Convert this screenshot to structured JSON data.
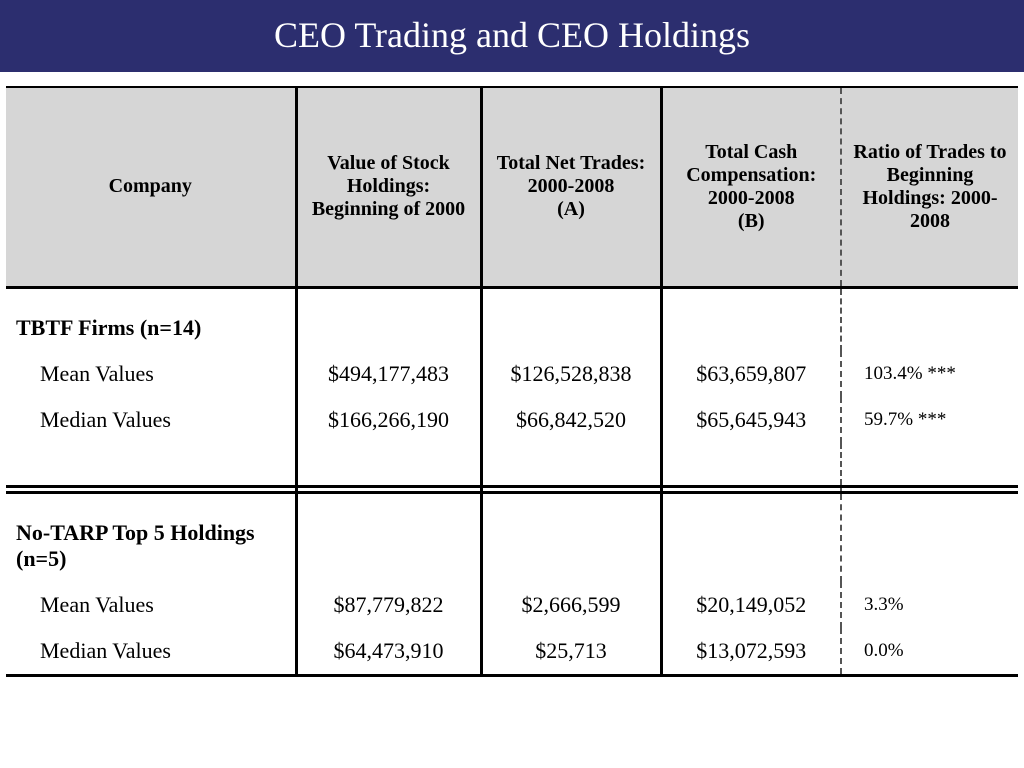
{
  "title": "CEO Trading and CEO Holdings",
  "columns": {
    "company": "Company",
    "holdings": "Value of Stock Holdings: Beginning of 2000",
    "trades_a": "Total Net Trades: 2000-2008",
    "trades_a_sub": "(A)",
    "cash_b": "Total Cash Compensation: 2000-2008",
    "cash_b_sub": "(B)",
    "ratio": "Ratio of Trades to Beginning Holdings: 2000-2008"
  },
  "groups": [
    {
      "label": "TBTF Firms (n=14)",
      "rows": [
        {
          "label": "Mean Values",
          "holdings": "$494,177,483",
          "trades": "$126,528,838",
          "cash": "$63,659,807",
          "ratio": "103.4% ***"
        },
        {
          "label": "Median Values",
          "holdings": "$166,266,190",
          "trades": "$66,842,520",
          "cash": "$65,645,943",
          "ratio": "59.7% ***"
        }
      ]
    },
    {
      "label": "No-TARP Top 5 Holdings (n=5)",
      "rows": [
        {
          "label": "Mean Values",
          "holdings": "$87,779,822",
          "trades": "$2,666,599",
          "cash": "$20,149,052",
          "ratio": "3.3%"
        },
        {
          "label": "Median Values",
          "holdings": "$64,473,910",
          "trades": "$25,713",
          "cash": "$13,072,593",
          "ratio": "0.0%"
        }
      ]
    }
  ],
  "colors": {
    "title_bg": "#2c2e6f",
    "title_text": "#ffffff",
    "header_bg": "#d6d6d6",
    "body_bg": "#ffffff",
    "border": "#000000",
    "dash": "#555555"
  },
  "typography": {
    "title_fontsize": 36,
    "header_fontsize": 20,
    "body_fontsize": 22,
    "ratio_fontsize": 19,
    "font_family": "Times New Roman"
  }
}
